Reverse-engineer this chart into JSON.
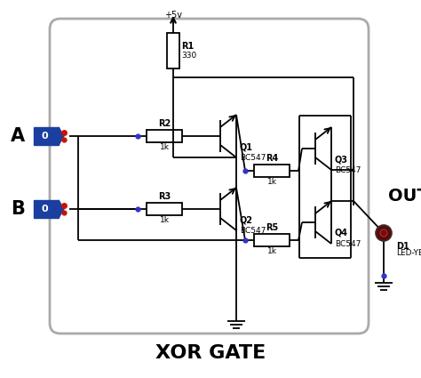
{
  "title": "XOR GATE",
  "bg": "#ffffff",
  "box_color": "#b0b0b0",
  "lc": "#000000",
  "lw": 1.3,
  "vcc_label": "+5v",
  "input_A": "A",
  "input_B": "B",
  "out_label": "OUT",
  "led_label": "D1",
  "led_type": "LED-YELLOW",
  "R1_label": "R1",
  "R1_val": "330",
  "R2_label": "R2",
  "R2_val": "1k",
  "R3_label": "R3",
  "R3_val": "1k",
  "R4_label": "R4",
  "R4_val": "1k",
  "R5_label": "R5",
  "R5_val": "1k",
  "Q1_label": "Q1",
  "Q1_type": "BC547",
  "Q2_label": "Q2",
  "Q2_type": "BC547",
  "Q3_label": "Q3",
  "Q3_type": "BC547",
  "Q4_label": "Q4",
  "Q4_type": "BC547",
  "title_fs": 16,
  "label_fs": 9,
  "small_fs": 6.5,
  "comp_fs": 7
}
